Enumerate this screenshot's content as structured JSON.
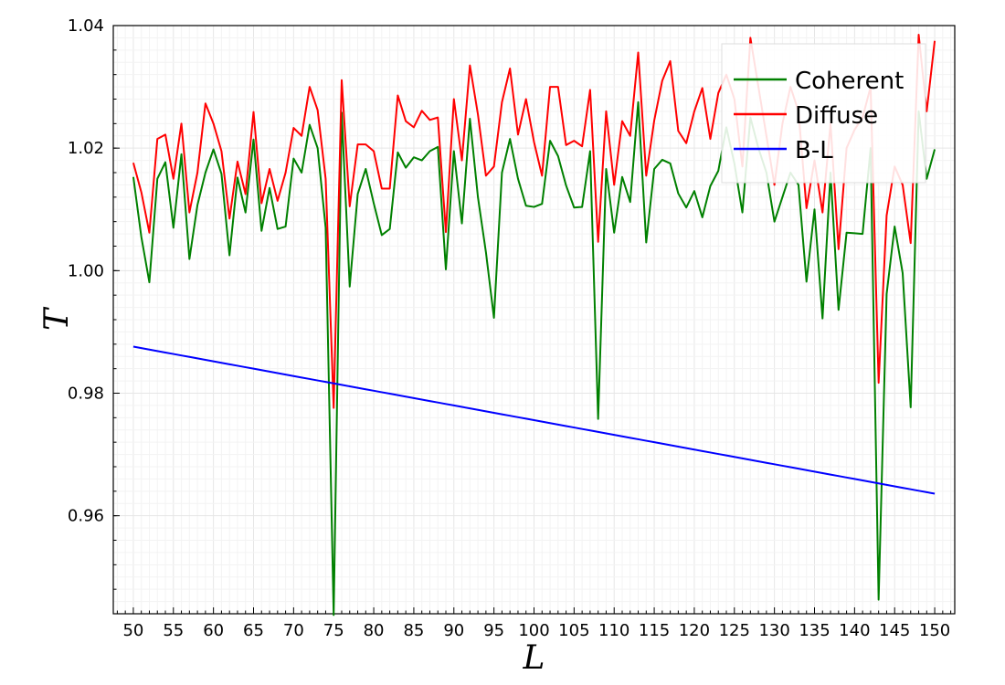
{
  "chart_data": {
    "type": "line",
    "title": "",
    "xlabel": "L",
    "ylabel": "T",
    "xlim": [
      47.5,
      152.5
    ],
    "ylim": [
      0.944,
      1.04
    ],
    "x_ticks": [
      50,
      55,
      60,
      65,
      70,
      75,
      80,
      85,
      90,
      95,
      100,
      105,
      110,
      115,
      120,
      125,
      130,
      135,
      140,
      145,
      150
    ],
    "y_ticks": [
      0.96,
      0.98,
      1.0,
      1.02,
      1.04
    ],
    "y_tick_labels": [
      "0.96",
      "0.98",
      "1.00",
      "1.02",
      "1.04"
    ],
    "grid": true,
    "legend_position": "top-right",
    "x": [
      50,
      51,
      52,
      53,
      54,
      55,
      56,
      57,
      58,
      59,
      60,
      61,
      62,
      63,
      64,
      65,
      66,
      67,
      68,
      69,
      70,
      71,
      72,
      73,
      74,
      75,
      76,
      77,
      78,
      79,
      80,
      81,
      82,
      83,
      84,
      85,
      86,
      87,
      88,
      89,
      90,
      91,
      92,
      93,
      94,
      95,
      96,
      97,
      98,
      99,
      100,
      101,
      102,
      103,
      104,
      105,
      106,
      107,
      108,
      109,
      110,
      111,
      112,
      113,
      114,
      115,
      116,
      117,
      118,
      119,
      120,
      121,
      122,
      123,
      124,
      125,
      126,
      127,
      128,
      129,
      130,
      131,
      132,
      133,
      134,
      135,
      136,
      137,
      138,
      139,
      140,
      141,
      142,
      143,
      144,
      145,
      146,
      147,
      148,
      149,
      150
    ],
    "series": [
      {
        "name": "Coherent",
        "color": "#008000",
        "values": [
          1.0153,
          1.0055,
          0.9981,
          1.015,
          1.0177,
          1.007,
          1.019,
          1.0019,
          1.0107,
          1.016,
          1.0198,
          1.0158,
          1.0025,
          1.0152,
          1.0095,
          1.0214,
          1.0065,
          1.0135,
          1.0068,
          1.0072,
          1.0183,
          1.016,
          1.0238,
          1.02,
          1.007,
          0.9438,
          1.0258,
          0.9974,
          1.0125,
          1.0166,
          1.011,
          1.0058,
          1.0068,
          1.0193,
          1.0168,
          1.0185,
          1.018,
          1.0195,
          1.0202,
          1.0002,
          1.0195,
          1.0077,
          1.0248,
          1.012,
          1.003,
          0.9923,
          1.016,
          1.0215,
          1.015,
          1.0106,
          1.0104,
          1.0109,
          1.0212,
          1.0187,
          1.0139,
          1.0103,
          1.0104,
          1.0195,
          0.9758,
          1.0166,
          1.0062,
          1.0153,
          1.0112,
          1.0275,
          1.0046,
          1.0166,
          1.0181,
          1.0175,
          1.0126,
          1.0103,
          1.013,
          1.0087,
          1.0138,
          1.0163,
          1.0234,
          1.0175,
          1.0095,
          1.025,
          1.02,
          1.016,
          1.008,
          1.012,
          1.016,
          1.014,
          0.9982,
          1.01,
          0.9922,
          1.016,
          0.9936,
          1.0062,
          1.0061,
          1.006,
          1.02,
          0.9463,
          0.9962,
          1.0072,
          0.9996,
          0.9777,
          1.026,
          1.015,
          1.0198
        ]
      },
      {
        "name": "Diffuse",
        "color": "#ff0000",
        "values": [
          1.0176,
          1.0128,
          1.0062,
          1.0215,
          1.0222,
          1.015,
          1.024,
          1.0095,
          1.016,
          1.0273,
          1.024,
          1.0195,
          1.0085,
          1.0178,
          1.0125,
          1.0259,
          1.011,
          1.0166,
          1.0114,
          1.016,
          1.0233,
          1.022,
          1.03,
          1.0262,
          1.015,
          0.9776,
          1.0311,
          1.0105,
          1.0206,
          1.0206,
          1.0195,
          1.0134,
          1.0134,
          1.0286,
          1.0244,
          1.0234,
          1.0261,
          1.0246,
          1.025,
          1.0063,
          1.028,
          1.018,
          1.0335,
          1.0255,
          1.0155,
          1.017,
          1.0275,
          1.033,
          1.0222,
          1.028,
          1.021,
          1.0155,
          1.03,
          1.03,
          1.0205,
          1.0212,
          1.0203,
          1.0295,
          1.0047,
          1.026,
          1.014,
          1.0244,
          1.022,
          1.0356,
          1.0155,
          1.0245,
          1.031,
          1.0342,
          1.0228,
          1.0208,
          1.026,
          1.0298,
          1.0215,
          1.029,
          1.032,
          1.028,
          1.017,
          1.038,
          1.03,
          1.022,
          1.014,
          1.024,
          1.03,
          1.026,
          1.0102,
          1.018,
          1.0095,
          1.024,
          1.0035,
          1.02,
          1.023,
          1.025,
          1.03,
          0.9817,
          1.009,
          1.017,
          1.014,
          1.0045,
          1.0385,
          1.026,
          1.0375
        ]
      },
      {
        "name": "B-L",
        "color": "#0000ff",
        "values": [
          0.9876,
          0.98736,
          0.98712,
          0.98688,
          0.98664,
          0.9864,
          0.98616,
          0.98592,
          0.98568,
          0.98544,
          0.9852,
          0.98496,
          0.98472,
          0.98448,
          0.98424,
          0.984,
          0.98376,
          0.98352,
          0.98328,
          0.98304,
          0.9828,
          0.98256,
          0.98232,
          0.98208,
          0.98184,
          0.9816,
          0.98136,
          0.98112,
          0.98088,
          0.98064,
          0.9804,
          0.98016,
          0.97992,
          0.97968,
          0.97944,
          0.9792,
          0.97896,
          0.97872,
          0.97848,
          0.97824,
          0.978,
          0.97776,
          0.97752,
          0.97728,
          0.97704,
          0.9768,
          0.97656,
          0.97632,
          0.97608,
          0.97584,
          0.9756,
          0.97536,
          0.97512,
          0.97488,
          0.97464,
          0.9744,
          0.97416,
          0.97392,
          0.97368,
          0.97344,
          0.9732,
          0.97296,
          0.97272,
          0.97248,
          0.97224,
          0.972,
          0.97176,
          0.97152,
          0.97128,
          0.97104,
          0.9708,
          0.97056,
          0.97032,
          0.97008,
          0.96984,
          0.9696,
          0.96936,
          0.96912,
          0.96888,
          0.96864,
          0.9684,
          0.96816,
          0.96792,
          0.96768,
          0.96744,
          0.9672,
          0.96696,
          0.96672,
          0.96648,
          0.96624,
          0.966,
          0.96576,
          0.96552,
          0.96528,
          0.96504,
          0.9648,
          0.96456,
          0.96432,
          0.96408,
          0.96384,
          0.9636
        ]
      }
    ]
  }
}
